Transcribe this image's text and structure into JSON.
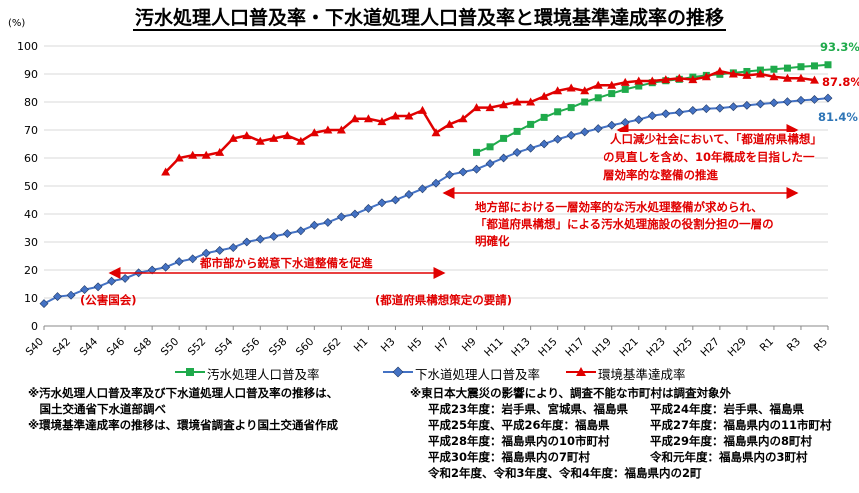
{
  "title": "汚水処理人口普及率・下水道処理人口普及率と環境基準達成率の推移",
  "chart_data": {
    "type": "line",
    "y_unit_label": "(%)",
    "ylim": [
      0,
      100
    ],
    "y_ticks": [
      0,
      10,
      20,
      30,
      40,
      50,
      60,
      70,
      80,
      90,
      100
    ],
    "x_tick_labels": [
      "S40",
      "S42",
      "S44",
      "S46",
      "S48",
      "S50",
      "S52",
      "S54",
      "S56",
      "S58",
      "S60",
      "S62",
      "H1",
      "H3",
      "H5",
      "H7",
      "H9",
      "H11",
      "H13",
      "H15",
      "H17",
      "H19",
      "H21",
      "H23",
      "H25",
      "H27",
      "H29",
      "R1",
      "R3",
      "R5"
    ],
    "x_years": [
      "S40",
      "S41",
      "S42",
      "S43",
      "S44",
      "S45",
      "S46",
      "S47",
      "S48",
      "S49",
      "S50",
      "S51",
      "S52",
      "S53",
      "S54",
      "S55",
      "S56",
      "S57",
      "S58",
      "S59",
      "S60",
      "S61",
      "S62",
      "S63",
      "H1",
      "H2",
      "H3",
      "H4",
      "H5",
      "H6",
      "H7",
      "H8",
      "H9",
      "H10",
      "H11",
      "H12",
      "H13",
      "H14",
      "H15",
      "H16",
      "H17",
      "H18",
      "H19",
      "H20",
      "H21",
      "H22",
      "H23",
      "H24",
      "H25",
      "H26",
      "H27",
      "H28",
      "H29",
      "H30",
      "R1",
      "R2",
      "R3",
      "R4",
      "R5"
    ],
    "grid": true,
    "legend_position": "bottom",
    "series": [
      {
        "name": "汚水処理人口普及率",
        "color": "#1faa4b",
        "marker": "square",
        "start_index": 32,
        "values": [
          62,
          64,
          67,
          69.5,
          72,
          74.5,
          76.5,
          78,
          80,
          81.5,
          83,
          84.5,
          85.7,
          86.9,
          87.6,
          88.1,
          88.9,
          89.5,
          89.9,
          90.4,
          90.9,
          91.4,
          91.7,
          92.1,
          92.6,
          92.9,
          93.3
        ]
      },
      {
        "name": "下水道処理人口普及率",
        "color": "#4472c4",
        "marker": "diamond",
        "start_index": 0,
        "values": [
          8,
          10.5,
          11,
          13,
          14,
          16,
          17,
          19,
          20,
          21,
          23,
          24,
          26,
          27,
          28,
          30,
          31,
          32,
          33,
          34,
          36,
          37,
          39,
          40,
          42,
          44,
          45,
          47,
          49,
          51,
          54,
          55,
          56,
          58,
          60,
          62,
          63.5,
          65,
          66.7,
          68.1,
          69.3,
          70.5,
          71.7,
          72.7,
          73.7,
          75.1,
          75.8,
          76.3,
          77.0,
          77.6,
          77.8,
          78.3,
          78.8,
          79.3,
          79.7,
          80.1,
          80.6,
          80.9,
          81.4
        ]
      },
      {
        "name": "環境基準達成率",
        "color": "#e00000",
        "marker": "triangle",
        "start_index": 9,
        "values": [
          55,
          60,
          61,
          61,
          62,
          67,
          68,
          66,
          67,
          68,
          66,
          69,
          70,
          70,
          74,
          74,
          73,
          75,
          75,
          77,
          69,
          72,
          74,
          78,
          78,
          79,
          80,
          80,
          82,
          84,
          85,
          84,
          86,
          86,
          87,
          87.5,
          87.5,
          88,
          88.5,
          88,
          89,
          91,
          90,
          89.5,
          90,
          89,
          88.5,
          88.5,
          87.8
        ]
      }
    ],
    "end_labels": [
      "93.3%",
      "87.8%",
      "81.4%"
    ]
  },
  "annotations": {
    "left_period_1": "都市部から鋭意下水道整備を促進",
    "left_period_2": "(公害国会)",
    "mid_period_1": "地方部における一層効率的な汚水処理整備が求められ、",
    "mid_period_2": "「都道府県構想」による汚水処理施設の役割分担の一層の",
    "mid_period_3": "明確化",
    "mid_period_4": "(都道府県構想策定の要請)",
    "right_period_1": "人口減少社会において、「都道府県構想」",
    "right_period_2": "の見直しを含め、10年概成を目指した一",
    "right_period_3": "層効率的な整備の推進"
  },
  "notes": {
    "left_1": "※汚水処理人口普及率及び下水道処理人口普及率の推移は、",
    "left_2": "　国土交通省下水道部調べ",
    "left_3": "※環境基準達成率の推移は、環境省調査より国土交通省作成",
    "right_head": "※東日本大震災の影響により、調査不能な市町村は調査対象外",
    "r1a": "平成23年度：岩手県、宮城県、福島県",
    "r1b": "平成24年度：岩手県、福島県",
    "r2a": "平成25年度、平成26年度：福島県",
    "r2b": "平成27年度：福島県内の11市町村",
    "r3a": "平成28年度：福島県内の10市町村",
    "r3b": "平成29年度：福島県内の8町村",
    "r4a": "平成30年度：福島県内の7町村",
    "r4b": "令和元年度：福島県内の3町村",
    "r5": "令和2年度、令和3年度、令和4年度：福島県内の2町"
  }
}
